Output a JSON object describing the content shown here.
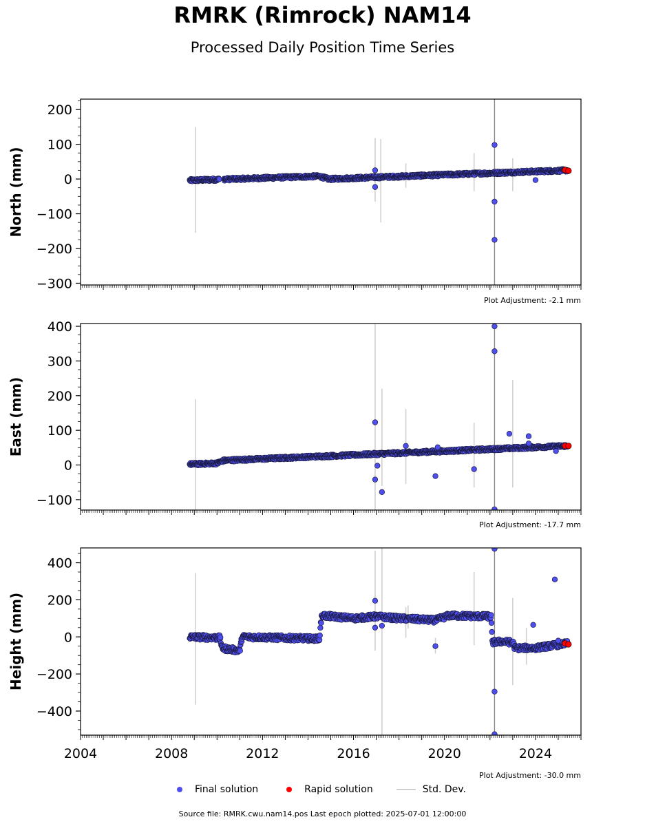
{
  "title": "RMRK (Rimrock) NAM14",
  "subtitle": "Processed Daily Position Time Series",
  "footer": "Source file: RMRK.cwu.nam14.pos  Last epoch plotted: 2025-07-01 12:00:00",
  "legend": {
    "final": "Final solution",
    "rapid": "Rapid solution",
    "std": "Std. Dev."
  },
  "colors": {
    "final": "#4f4ff0",
    "final_edge": "#1a1a40",
    "rapid": "#ff0000",
    "std": "#d0d0d0",
    "gap": "#888888"
  },
  "chart_data": [
    {
      "type": "scatter",
      "ylabel": "North (mm)",
      "adjustment": "Plot Adjustment: -2.1 mm",
      "xlim": [
        2004,
        2026
      ],
      "ylim": [
        -305,
        230
      ],
      "yticks": [
        200,
        100,
        0,
        -100,
        -200,
        -300
      ],
      "ytick_labels": [
        "200",
        "100",
        "0",
        "−100",
        "−200",
        "−300"
      ],
      "trend": [
        [
          2008.8,
          -4
        ],
        [
          2014.5,
          8
        ],
        [
          2014.9,
          0
        ],
        [
          2025.4,
          25
        ]
      ],
      "scatter": 4,
      "gaps": [
        [
          2010.1,
          2010.3
        ]
      ],
      "outliers": [
        [
          2016.95,
          25
        ],
        [
          2016.95,
          -23
        ],
        [
          2022.2,
          98
        ],
        [
          2022.2,
          -65
        ],
        [
          2022.2,
          -175
        ],
        [
          2024.0,
          -3
        ]
      ],
      "std_bars": [
        [
          2009.05,
          -155,
          150
        ],
        [
          2016.95,
          -65,
          118
        ],
        [
          2017.2,
          -125,
          115
        ],
        [
          2018.3,
          -25,
          45
        ],
        [
          2021.3,
          -35,
          75
        ],
        [
          2022.2,
          -305,
          230
        ],
        [
          2023.0,
          -35,
          60
        ]
      ],
      "rapid": [
        [
          2025.3,
          26
        ],
        [
          2025.45,
          24
        ]
      ]
    },
    {
      "type": "scatter",
      "ylabel": "East (mm)",
      "adjustment": "Plot Adjustment: -17.7 mm",
      "xlim": [
        2004,
        2026
      ],
      "ylim": [
        -130,
        408
      ],
      "yticks": [
        400,
        300,
        200,
        100,
        0,
        -100
      ],
      "ytick_labels": [
        "400",
        "300",
        "200",
        "100",
        "0",
        "−100"
      ],
      "trend": [
        [
          2008.8,
          2
        ],
        [
          2010.0,
          5
        ],
        [
          2010.3,
          13
        ],
        [
          2025.4,
          55
        ]
      ],
      "scatter": 4,
      "gaps": [],
      "outliers": [
        [
          2016.95,
          123
        ],
        [
          2016.95,
          -42
        ],
        [
          2017.05,
          -2
        ],
        [
          2017.25,
          -78
        ],
        [
          2018.3,
          55
        ],
        [
          2019.6,
          -32
        ],
        [
          2019.7,
          51
        ],
        [
          2021.3,
          -12
        ],
        [
          2022.2,
          400
        ],
        [
          2022.2,
          328
        ],
        [
          2022.2,
          -128
        ],
        [
          2022.85,
          90
        ],
        [
          2023.7,
          83
        ],
        [
          2023.7,
          62
        ],
        [
          2024.9,
          40
        ]
      ],
      "std_bars": [
        [
          2009.05,
          -130,
          190
        ],
        [
          2016.95,
          -130,
          408
        ],
        [
          2017.25,
          -60,
          220
        ],
        [
          2018.3,
          -55,
          162
        ],
        [
          2021.3,
          -65,
          122
        ],
        [
          2022.2,
          -130,
          408
        ],
        [
          2023.0,
          -65,
          245
        ]
      ],
      "rapid": [
        [
          2025.3,
          55
        ],
        [
          2025.45,
          55
        ]
      ]
    },
    {
      "type": "scatter",
      "ylabel": "Height (mm)",
      "adjustment": "Plot Adjustment: -30.0 mm",
      "xlim": [
        2004,
        2026
      ],
      "ylim": [
        -530,
        480
      ],
      "yticks": [
        400,
        200,
        0,
        -200,
        -400
      ],
      "ytick_labels": [
        "400",
        "200",
        "0",
        "−200",
        "−400"
      ],
      "xticks": [
        2004,
        2008,
        2012,
        2016,
        2020,
        2024
      ],
      "xtick_labels": [
        "2004",
        "2008",
        "2012",
        "2016",
        "2020",
        "2024"
      ],
      "trend": [
        [
          2008.8,
          0
        ],
        [
          2010.15,
          -5
        ],
        [
          2010.2,
          -60
        ],
        [
          2011.0,
          -75
        ],
        [
          2011.1,
          0
        ],
        [
          2014.5,
          -10
        ],
        [
          2014.6,
          115
        ],
        [
          2016.0,
          100
        ],
        [
          2017.0,
          110
        ],
        [
          2018.0,
          100
        ],
        [
          2019.6,
          90
        ],
        [
          2020.2,
          115
        ],
        [
          2022.05,
          110
        ],
        [
          2022.1,
          -30
        ],
        [
          2022.5,
          -25
        ],
        [
          2023.0,
          -30
        ],
        [
          2023.1,
          -60
        ],
        [
          2024.0,
          -60
        ],
        [
          2025.4,
          -35
        ]
      ],
      "scatter": 14,
      "gaps": [],
      "outliers": [
        [
          2016.95,
          195
        ],
        [
          2016.95,
          50
        ],
        [
          2017.25,
          60
        ],
        [
          2019.6,
          -50
        ],
        [
          2022.2,
          475
        ],
        [
          2022.2,
          -295
        ],
        [
          2022.2,
          -525
        ],
        [
          2023.9,
          65
        ],
        [
          2024.85,
          310
        ],
        [
          2025.0,
          -20
        ]
      ],
      "std_bars": [
        [
          2009.05,
          -365,
          345
        ],
        [
          2016.95,
          -75,
          465
        ],
        [
          2017.25,
          -530,
          480
        ],
        [
          2018.3,
          -5,
          160
        ],
        [
          2018.4,
          45,
          170
        ],
        [
          2019.6,
          -90,
          -5
        ],
        [
          2021.3,
          -45,
          350
        ],
        [
          2022.2,
          -530,
          480
        ],
        [
          2023.0,
          -260,
          210
        ],
        [
          2023.6,
          -150,
          50
        ]
      ],
      "rapid": [
        [
          2025.3,
          -35
        ],
        [
          2025.45,
          -40
        ]
      ]
    }
  ]
}
